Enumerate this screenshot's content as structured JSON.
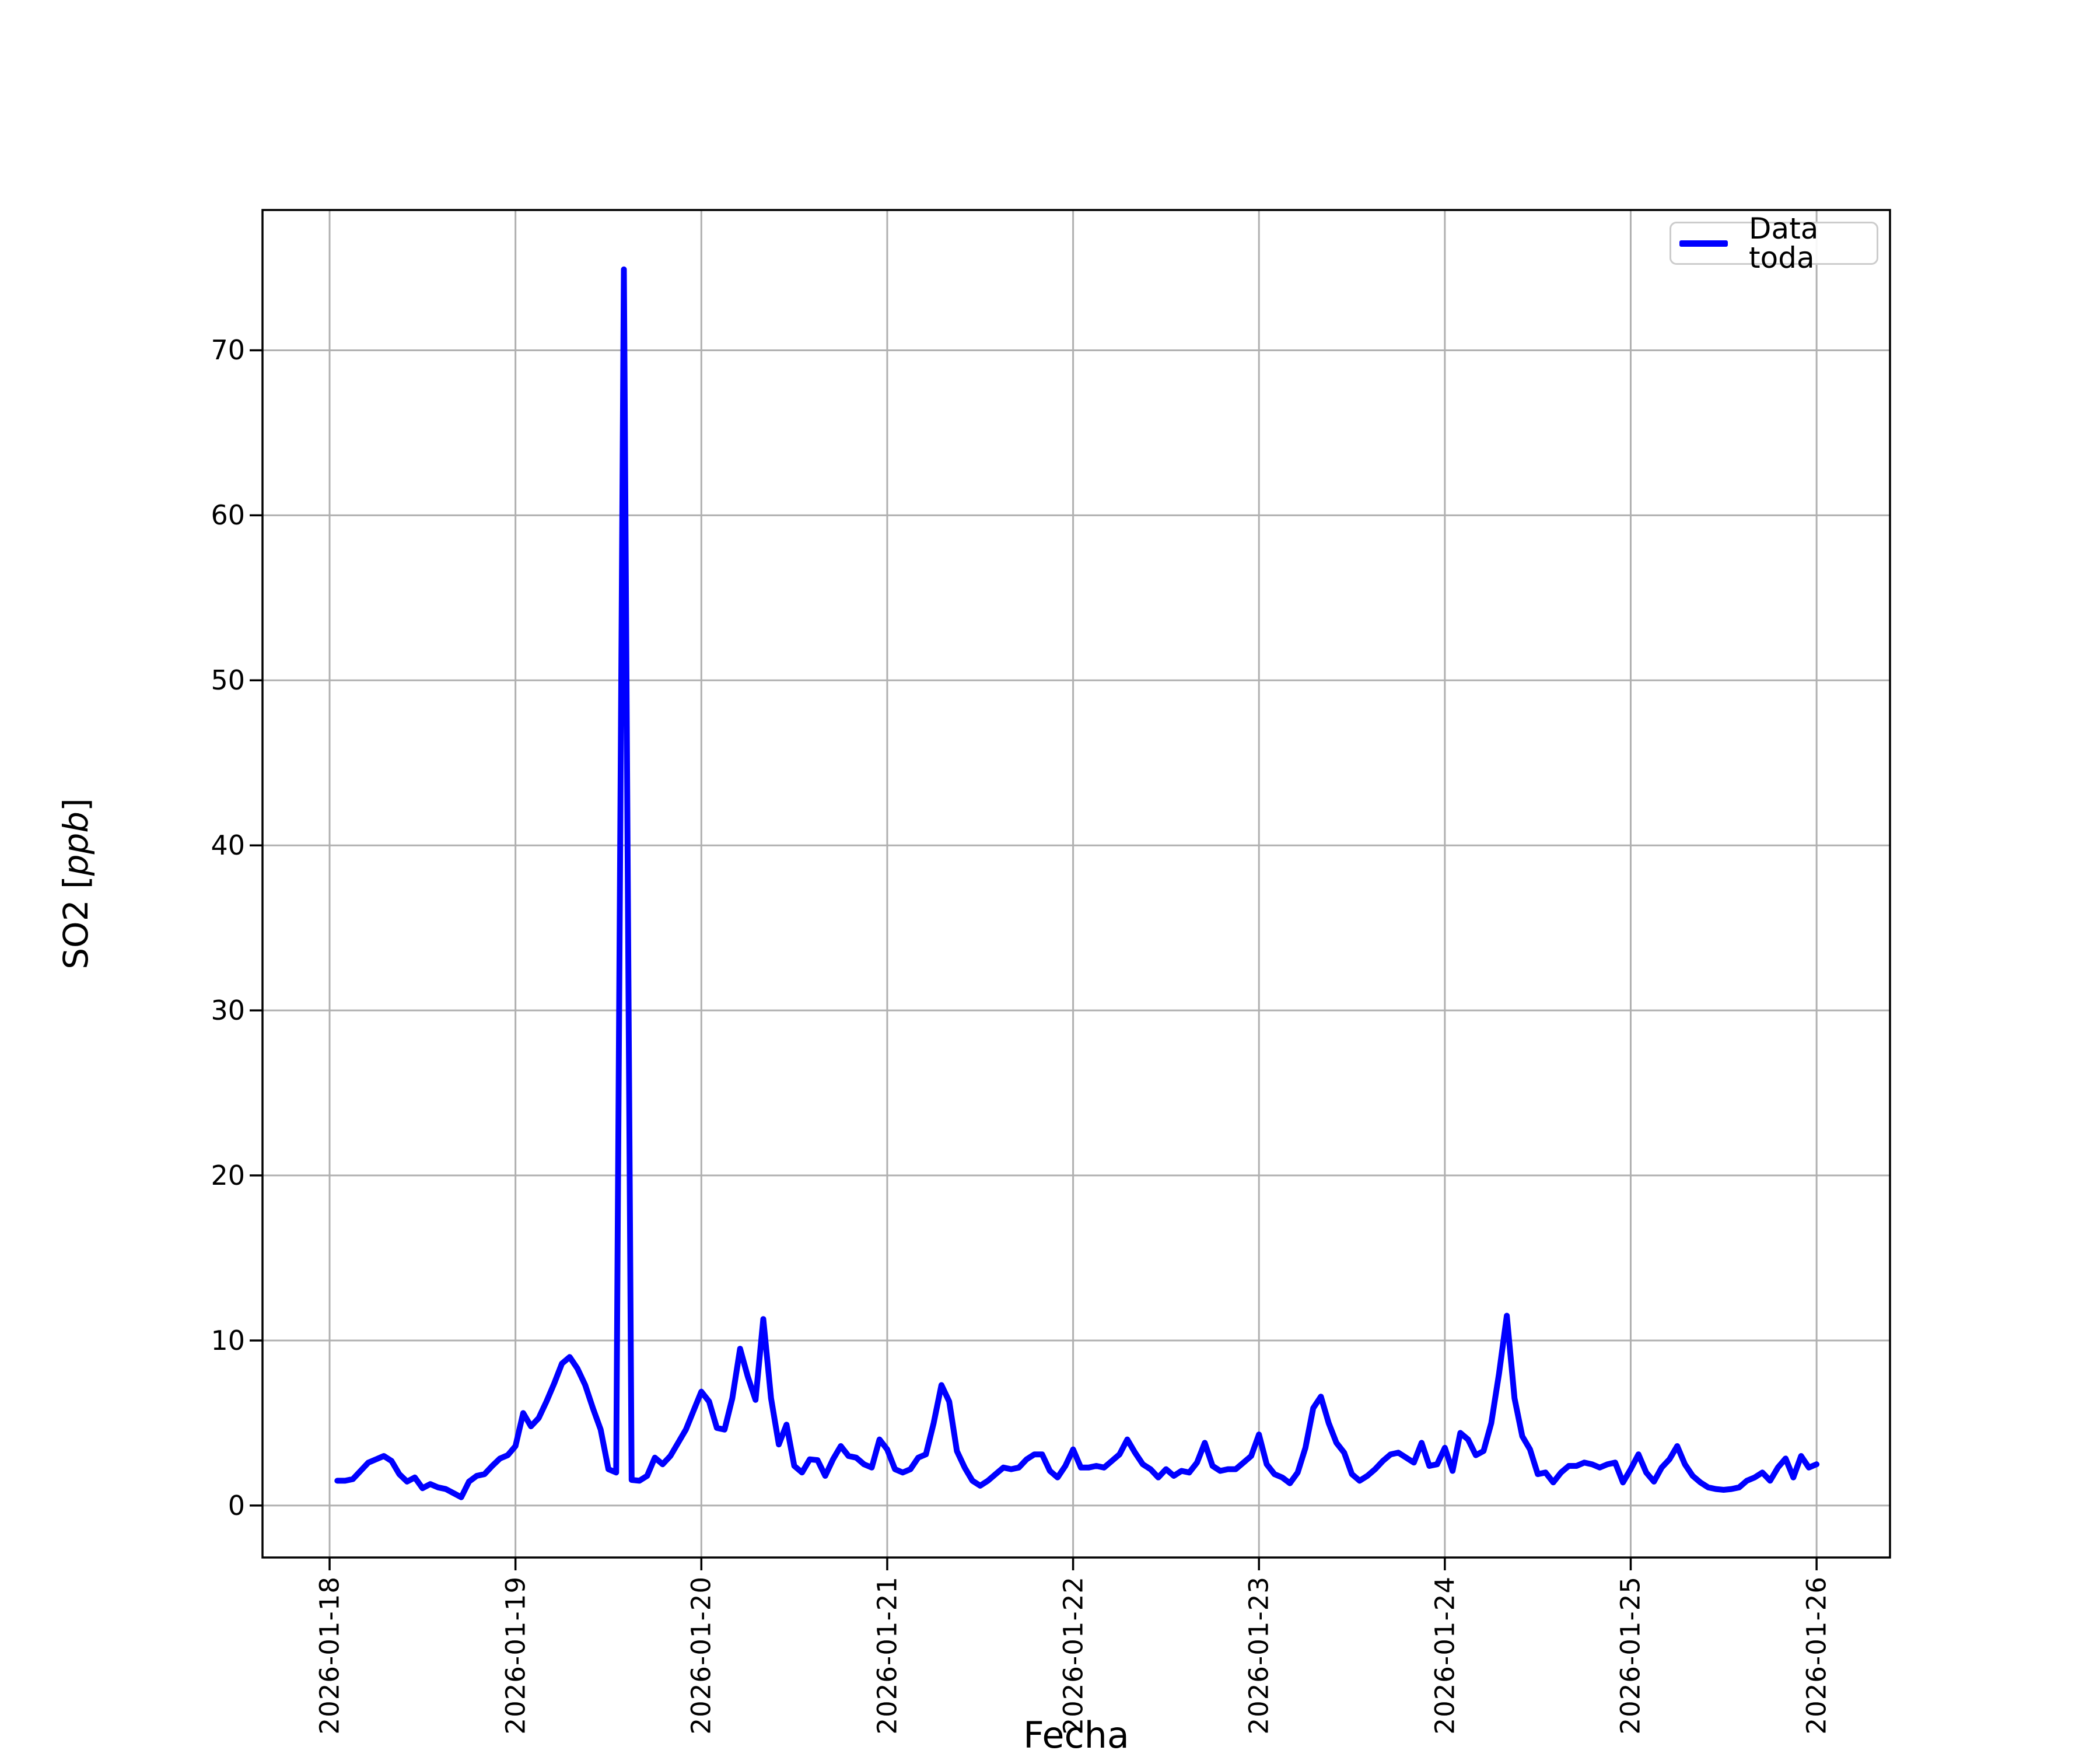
{
  "chart_data": {
    "type": "line",
    "xlabel": "Fecha",
    "ylabel": "SO2 [ppb]",
    "ylabel_parts": {
      "prefix": "SO2 [",
      "italic": "ppb",
      "suffix": "]"
    },
    "legend_label": "Data toda",
    "legend_position": "upper right",
    "line_color": "#0000ff",
    "grid": true,
    "grid_color": "#b0b0b0",
    "background_color": "#ffffff",
    "x_tick_labels": [
      "2026-01-18",
      "2026-01-19",
      "2026-01-20",
      "2026-01-21",
      "2026-01-22",
      "2026-01-23",
      "2026-01-24",
      "2026-01-25",
      "2026-01-26"
    ],
    "y_ticks": [
      0,
      10,
      20,
      30,
      40,
      50,
      60,
      70
    ],
    "ylim": [
      -3.15,
      78.5
    ],
    "xlim_days": [
      -0.361,
      8.395
    ],
    "x_encoding": "hours since 2026-01-18 00:00, hourly samples",
    "x_start_hour": 1,
    "x_step_hours": 1,
    "series": [
      {
        "name": "Data toda",
        "values": [
          1.5,
          1.5,
          1.6,
          2.1,
          2.6,
          2.8,
          3.0,
          2.7,
          1.9,
          1.45,
          1.7,
          1.05,
          1.3,
          1.1,
          1.0,
          0.75,
          0.5,
          1.45,
          1.8,
          1.9,
          2.4,
          2.85,
          3.05,
          3.6,
          5.6,
          4.8,
          5.3,
          6.3,
          7.4,
          8.6,
          9.0,
          8.3,
          7.3,
          5.9,
          4.6,
          2.2,
          2.0,
          74.9,
          1.55,
          1.5,
          1.8,
          2.9,
          2.5,
          3.0,
          3.8,
          4.6,
          5.75,
          6.9,
          6.3,
          4.7,
          4.6,
          6.5,
          9.5,
          7.8,
          6.4,
          11.3,
          6.5,
          3.7,
          4.9,
          2.4,
          2.0,
          2.8,
          2.75,
          1.8,
          2.8,
          3.6,
          3.0,
          2.9,
          2.5,
          2.3,
          4.0,
          3.4,
          2.2,
          2.0,
          2.2,
          2.9,
          3.1,
          5.0,
          7.3,
          6.3,
          3.3,
          2.3,
          1.5,
          1.2,
          1.5,
          1.9,
          2.3,
          2.2,
          2.3,
          2.8,
          3.1,
          3.1,
          2.1,
          1.7,
          2.4,
          3.4,
          2.3,
          2.3,
          2.4,
          2.3,
          2.7,
          3.1,
          4.0,
          3.2,
          2.5,
          2.2,
          1.7,
          2.2,
          1.8,
          2.1,
          2.0,
          2.6,
          3.8,
          2.4,
          2.1,
          2.2,
          2.2,
          2.6,
          3.0,
          4.3,
          2.5,
          1.9,
          1.7,
          1.35,
          2.0,
          3.5,
          5.9,
          6.6,
          5.0,
          3.8,
          3.2,
          1.9,
          1.5,
          1.8,
          2.2,
          2.7,
          3.1,
          3.2,
          2.9,
          2.6,
          3.8,
          2.4,
          2.5,
          3.5,
          2.1,
          4.4,
          4.0,
          3.05,
          3.3,
          5.0,
          8.0,
          11.5,
          6.5,
          4.2,
          3.4,
          1.9,
          2.0,
          1.4,
          2.0,
          2.4,
          2.4,
          2.6,
          2.5,
          2.3,
          2.5,
          2.6,
          1.4,
          2.2,
          3.1,
          2.0,
          1.45,
          2.3,
          2.8,
          3.6,
          2.5,
          1.8,
          1.4,
          1.1,
          1.0,
          0.95,
          1.0,
          1.1,
          1.5,
          1.7,
          2.0,
          1.5,
          2.3,
          2.85,
          1.7,
          3.0,
          2.3,
          2.5
        ]
      }
    ]
  }
}
